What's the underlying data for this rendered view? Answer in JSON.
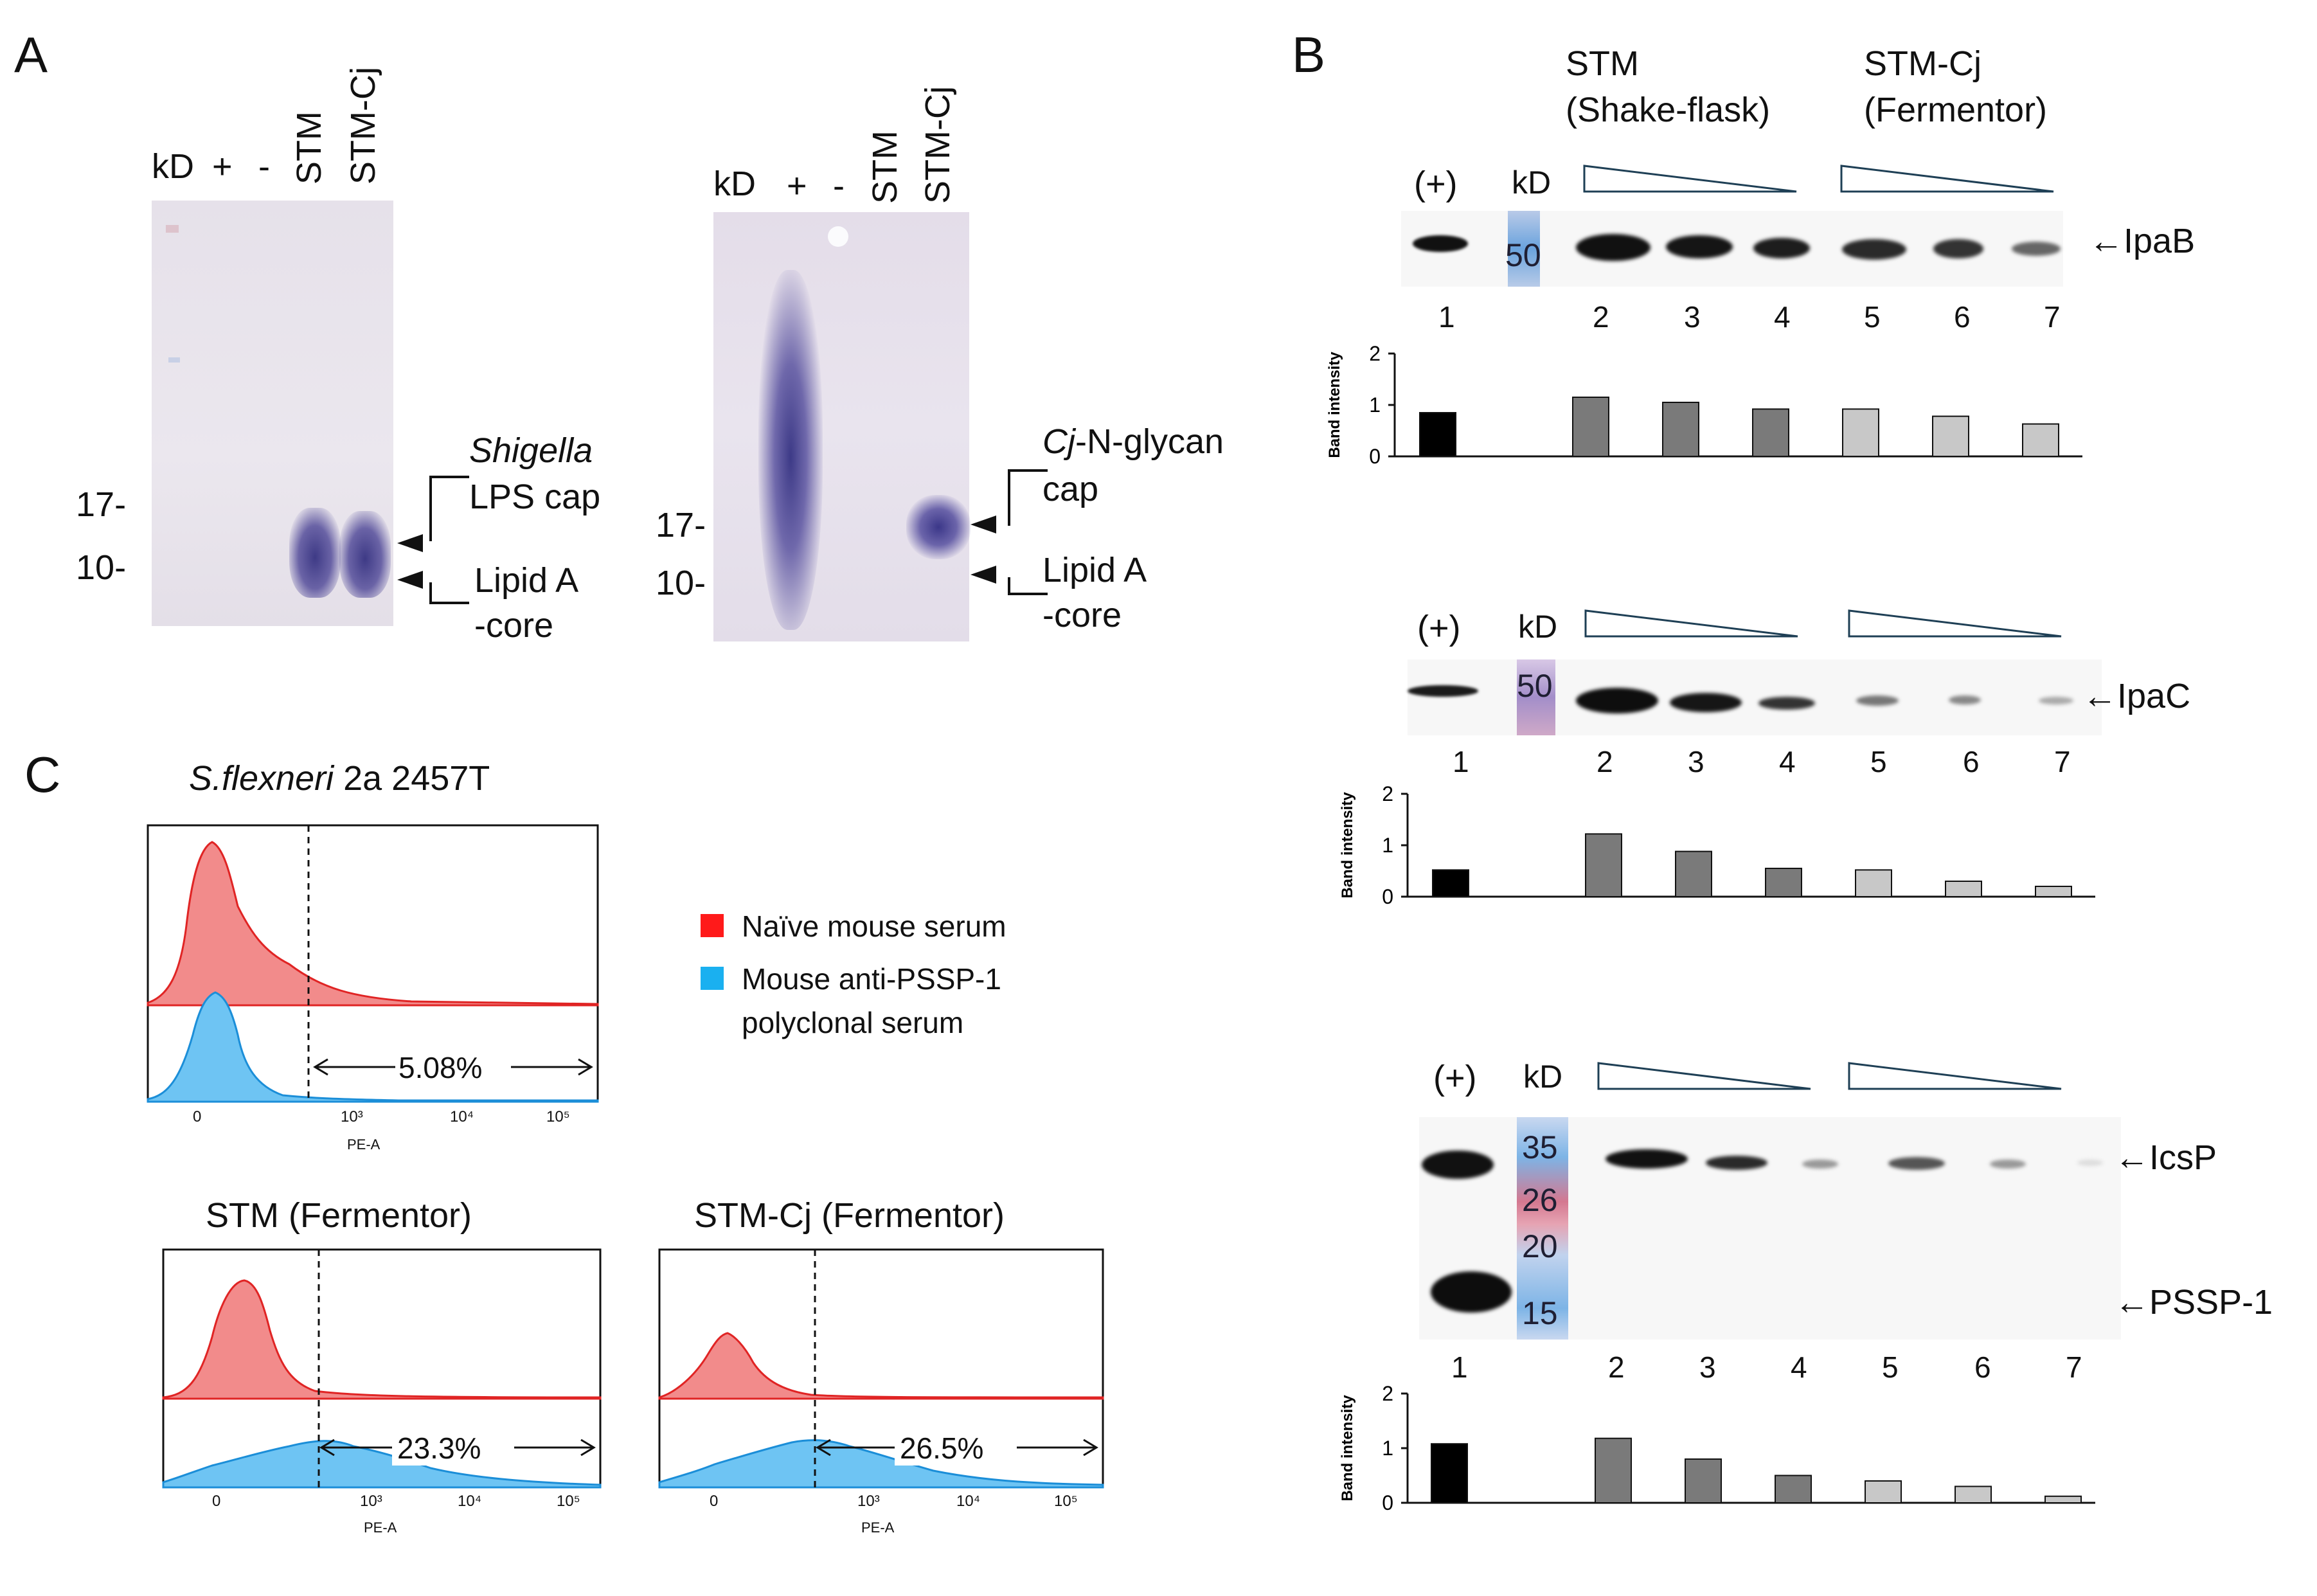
{
  "panels": {
    "A": {
      "letter": "A",
      "gel1": {
        "lanes": [
          "kD",
          "+",
          "-",
          "STM",
          "STM-Cj"
        ],
        "markers": [
          "17-",
          "10-"
        ],
        "annotation_top": [
          "Shigella",
          "LPS cap"
        ],
        "annotation_bottom": [
          "Lipid A",
          "-core"
        ]
      },
      "gel2": {
        "lanes": [
          "kD",
          "+",
          "-",
          "STM",
          "STM-Cj"
        ],
        "markers": [
          "17-",
          "10-"
        ],
        "annotation_top_italic": "Cj",
        "annotation_top_rest": "-N-glycan",
        "annotation_top_line2": "cap",
        "annotation_bottom": [
          "Lipid A",
          "-core"
        ]
      }
    },
    "B": {
      "letter": "B",
      "group1": [
        "STM",
        "(Shake-flask)"
      ],
      "group2": [
        "STM-Cj",
        "(Fermentor)"
      ],
      "pos_label": "(+)",
      "kd_label": "kD",
      "lane_numbers": [
        "1",
        "2",
        "3",
        "4",
        "5",
        "6",
        "7"
      ],
      "blots": [
        {
          "protein": "←IpaB",
          "markers": [
            "50"
          ]
        },
        {
          "protein": "←IpaC",
          "markers": [
            "50"
          ]
        },
        {
          "protein": "←IcsP",
          "protein2": "←PSSP-1",
          "markers": [
            "35",
            "26",
            "20",
            "15"
          ]
        }
      ]
    },
    "C": {
      "letter": "C",
      "title_italic": "S.flexneri",
      "title_rest": " 2a 2457T",
      "legend": [
        {
          "label": "Naïve mouse serum",
          "color": "#ff1a1a"
        },
        {
          "label": "Mouse anti-PSSP-1",
          "label2": "polyclonal serum",
          "color": "#1ab0f0"
        }
      ],
      "plots": [
        {
          "title": "",
          "percent": "5.08%"
        },
        {
          "title": "STM (Fermentor)",
          "percent": "23.3%"
        },
        {
          "title": "STM-Cj (Fermentor)",
          "percent": "26.5%"
        }
      ],
      "axis_label": "PE-A",
      "ticks": [
        "0",
        "10³",
        "10⁴",
        "10⁵"
      ]
    }
  },
  "chart_data": [
    {
      "type": "bar",
      "title": "IpaB",
      "categories": [
        "1",
        "2",
        "3",
        "4",
        "5",
        "6",
        "7"
      ],
      "values": [
        0.85,
        1.15,
        1.05,
        0.92,
        0.92,
        0.78,
        0.63
      ],
      "colors": [
        "#000000",
        "#7a7a7a",
        "#7a7a7a",
        "#7a7a7a",
        "#c8c8c8",
        "#c8c8c8",
        "#c8c8c8"
      ],
      "ylabel": "Band intensity",
      "ylim": [
        0,
        2
      ],
      "yticks": [
        "0",
        "1",
        "2"
      ]
    },
    {
      "type": "bar",
      "title": "IpaC",
      "categories": [
        "1",
        "2",
        "3",
        "4",
        "5",
        "6",
        "7"
      ],
      "values": [
        0.52,
        1.22,
        0.88,
        0.55,
        0.52,
        0.3,
        0.2
      ],
      "colors": [
        "#000000",
        "#7a7a7a",
        "#7a7a7a",
        "#7a7a7a",
        "#c8c8c8",
        "#c8c8c8",
        "#c8c8c8"
      ],
      "ylabel": "Band intensity",
      "ylim": [
        0,
        2
      ],
      "yticks": [
        "0",
        "1",
        "2"
      ]
    },
    {
      "type": "bar",
      "title": "IcsP",
      "categories": [
        "1",
        "2",
        "3",
        "4",
        "5",
        "6",
        "7"
      ],
      "values": [
        1.08,
        1.18,
        0.8,
        0.5,
        0.4,
        0.3,
        0.12
      ],
      "colors": [
        "#000000",
        "#7a7a7a",
        "#7a7a7a",
        "#7a7a7a",
        "#c8c8c8",
        "#c8c8c8",
        "#c8c8c8"
      ],
      "ylabel": "Band intensity",
      "ylim": [
        0,
        2
      ],
      "yticks": [
        "0",
        "1",
        "2"
      ]
    }
  ]
}
